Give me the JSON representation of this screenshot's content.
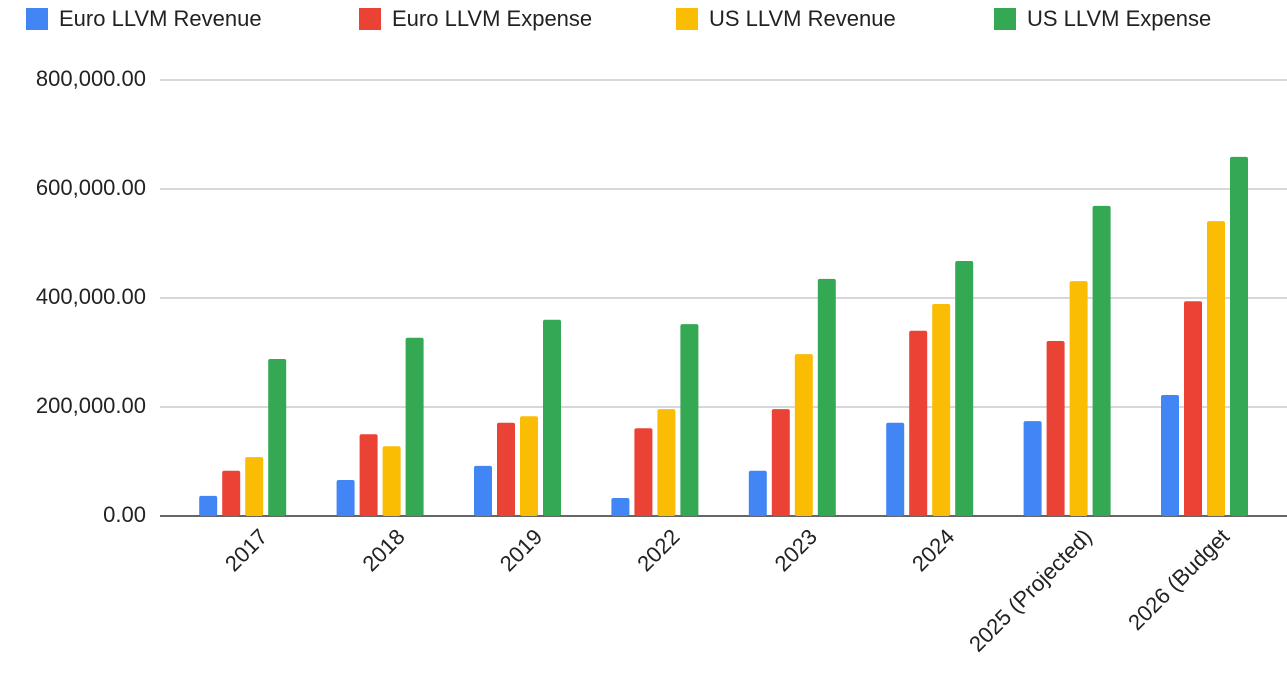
{
  "chart_data": {
    "type": "bar",
    "categories": [
      "2017",
      "2018",
      "2019",
      "2022",
      "2023",
      "2024",
      "2025 (Projected)",
      "2026 (Budget"
    ],
    "series": [
      {
        "name": "Euro LLVM Revenue",
        "color": "#4285f4",
        "values": [
          37000,
          66000,
          92000,
          33000,
          83000,
          171000,
          174000,
          222000
        ]
      },
      {
        "name": "Euro LLVM Expense",
        "color": "#ea4335",
        "values": [
          83000,
          150000,
          171000,
          161000,
          196000,
          340000,
          321000,
          394000
        ]
      },
      {
        "name": "US LLVM Revenue",
        "color": "#fbbc04",
        "values": [
          108000,
          128000,
          183000,
          196000,
          297000,
          389000,
          431000,
          541000
        ]
      },
      {
        "name": "US LLVM Expense",
        "color": "#34a853",
        "values": [
          288000,
          327000,
          360000,
          352000,
          435000,
          468000,
          569000,
          659000
        ]
      }
    ],
    "ylim": [
      0,
      800000
    ],
    "yticks": [
      {
        "value": 0,
        "label": "0.00"
      },
      {
        "value": 200000,
        "label": "200,000.00"
      },
      {
        "value": 400000,
        "label": "400,000.00"
      },
      {
        "value": 600000,
        "label": "600,000.00"
      },
      {
        "value": 800000,
        "label": "800,000.00"
      }
    ],
    "grid": true,
    "legend": "top"
  }
}
